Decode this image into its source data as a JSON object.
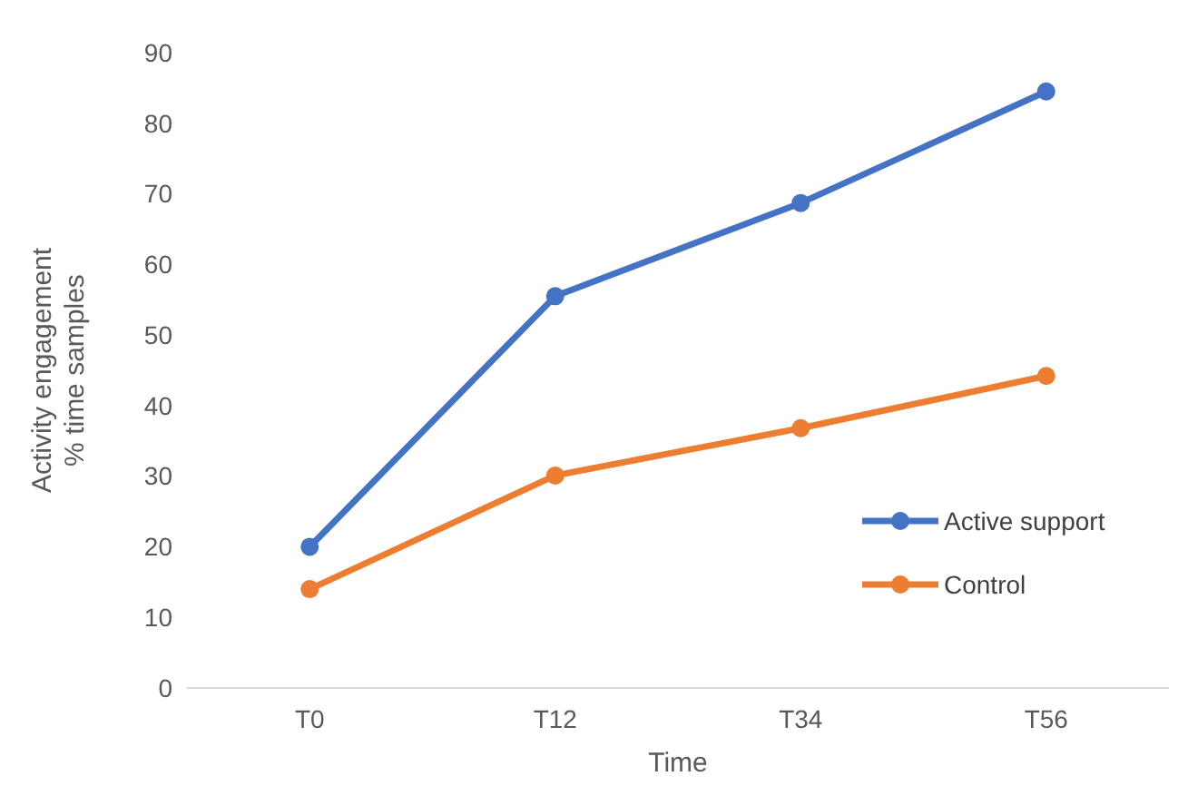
{
  "chart_data": {
    "type": "line",
    "xlabel": "Time",
    "ylabel": "Activity engagement\n% time samples",
    "categories": [
      "T0",
      "T12",
      "T34",
      "T56"
    ],
    "series": [
      {
        "name": "Active support",
        "color": "#4472c4",
        "values": [
          20,
          55.5,
          68.7,
          84.5
        ]
      },
      {
        "name": "Control",
        "color": "#ed7d31",
        "values": [
          14,
          30.1,
          36.8,
          44.2
        ]
      }
    ],
    "ylim": [
      0,
      90
    ],
    "yticks": [
      0,
      10,
      20,
      30,
      40,
      50,
      60,
      70,
      80,
      90
    ],
    "grid": false,
    "legend": "bottom right",
    "marker": "circle",
    "line_style": "solid"
  }
}
